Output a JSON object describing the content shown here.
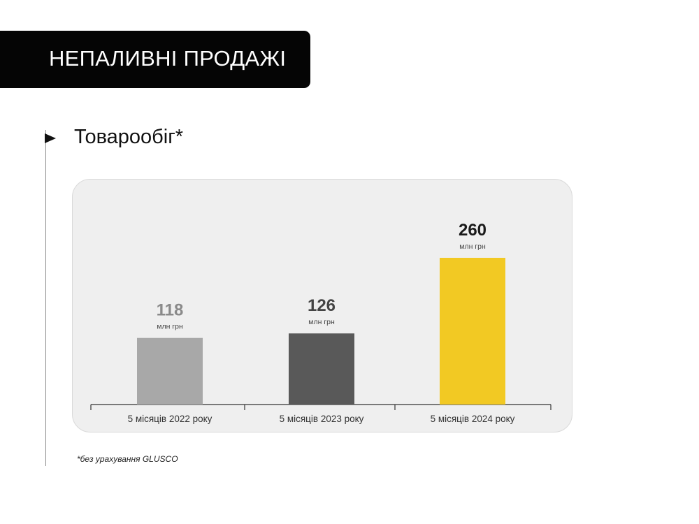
{
  "header": {
    "title": "НЕПАЛИВНІ ПРОДАЖІ"
  },
  "section": {
    "title": "Товарообіг*",
    "icon": "play-arrow-icon"
  },
  "footnote": "*без урахування GLUSCO",
  "chart_data": {
    "type": "bar",
    "title": "",
    "xlabel": "",
    "ylabel": "",
    "categories": [
      "5 місяців 2022 року",
      "5 місяців 2023 року",
      "5 місяців 2024 року"
    ],
    "values": [
      118,
      126,
      260
    ],
    "value_labels": [
      "118",
      "126",
      "260"
    ],
    "unit_label": "млн грн",
    "bar_colors": [
      "#a8a8a8",
      "#595959",
      "#f2c923"
    ],
    "value_label_colors": [
      "#8a8a8a",
      "#444444",
      "#1a1a1a"
    ],
    "ylim": [
      0,
      260
    ],
    "grid": false,
    "legend": "none"
  }
}
